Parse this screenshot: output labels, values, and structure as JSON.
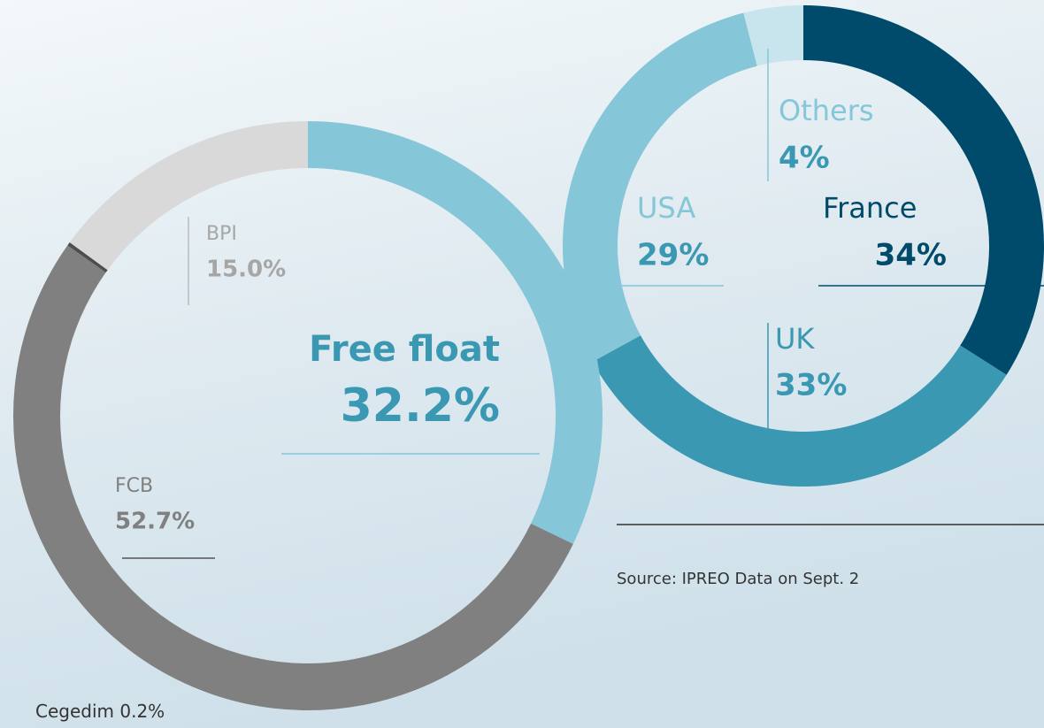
{
  "chart_data": [
    {
      "type": "pie",
      "categories": [
        "Free float",
        "FCB",
        "Cegedim",
        "BPI"
      ],
      "values": [
        32.2,
        52.7,
        0.2,
        15.0
      ],
      "value_labels": [
        "32.2%",
        "52.7%",
        "0.2%",
        "15.0%"
      ],
      "colors": [
        "#86c6d9",
        "#808080",
        "#4d4d4d",
        "#d9d9d9"
      ]
    },
    {
      "type": "pie",
      "categories": [
        "France",
        "UK",
        "USA",
        "Others"
      ],
      "values": [
        34,
        33,
        29,
        4
      ],
      "value_labels": [
        "34%",
        "33%",
        "29%",
        "4%"
      ],
      "colors": [
        "#004a6b",
        "#3a98b3",
        "#86c6d9",
        "#c8e5ed"
      ]
    }
  ],
  "source": "Source: IPREO Data on Sept. 2"
}
